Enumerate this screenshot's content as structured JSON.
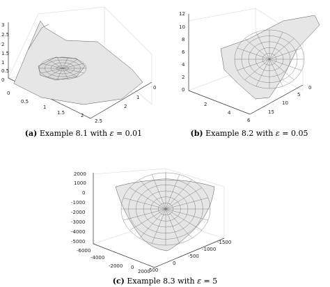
{
  "captions": [
    {
      "tag": "(a)",
      "text": "Example 8.1 with",
      "symbol": "ε",
      "rel": "= 0.01"
    },
    {
      "tag": "(b)",
      "text": "Example 8.2 with",
      "symbol": "ε",
      "rel": "= 0.05"
    },
    {
      "tag": "(c)",
      "text": "Example 8.3 with",
      "symbol": "ε",
      "rel": "= 5"
    }
  ],
  "chart_data": [
    {
      "type": "surface",
      "epsilon": 0.01,
      "axes": {
        "x": {
          "ticks": [
            "0",
            "0.5",
            "1",
            "1.5",
            "2",
            "2.5"
          ],
          "range": [
            0,
            2.5
          ]
        },
        "y": {
          "ticks": [
            "0",
            "1",
            "2"
          ],
          "range": [
            0,
            2
          ]
        },
        "z": {
          "ticks": [
            "0",
            "0.5",
            "1",
            "1.5",
            "2",
            "2.5",
            "3"
          ],
          "range": [
            0,
            3
          ]
        }
      },
      "grid": true,
      "surface_color": "#e6e6e6",
      "edge_color": "#555555"
    },
    {
      "type": "surface",
      "epsilon": 0.05,
      "axes": {
        "x": {
          "ticks": [
            "2",
            "4",
            "6"
          ],
          "range": [
            2,
            6
          ]
        },
        "y": {
          "ticks": [
            "0",
            "5",
            "10",
            "15"
          ],
          "range": [
            0,
            15
          ]
        },
        "z": {
          "ticks": [
            "0",
            "2",
            "4",
            "6",
            "8",
            "10",
            "12"
          ],
          "range": [
            0,
            12
          ]
        }
      },
      "grid": true,
      "surface_color": "#e6e6e6",
      "edge_color": "#555555"
    },
    {
      "type": "surface",
      "epsilon": 5,
      "axes": {
        "x": {
          "ticks": [
            "-6000",
            "-4000",
            "-2000",
            "0",
            "2000"
          ],
          "range": [
            -6000,
            2000
          ]
        },
        "y": {
          "ticks": [
            "500",
            "0",
            "-500",
            "-1000",
            "-1500"
          ],
          "range": [
            -1500,
            500
          ]
        },
        "z": {
          "ticks": [
            "2000",
            "1000",
            "0",
            "-1000",
            "-2000",
            "-3000",
            "-4000",
            "-5000"
          ],
          "range": [
            -5000,
            2000
          ]
        }
      },
      "grid": true,
      "surface_color": "#e6e6e6",
      "edge_color": "#555555"
    }
  ]
}
